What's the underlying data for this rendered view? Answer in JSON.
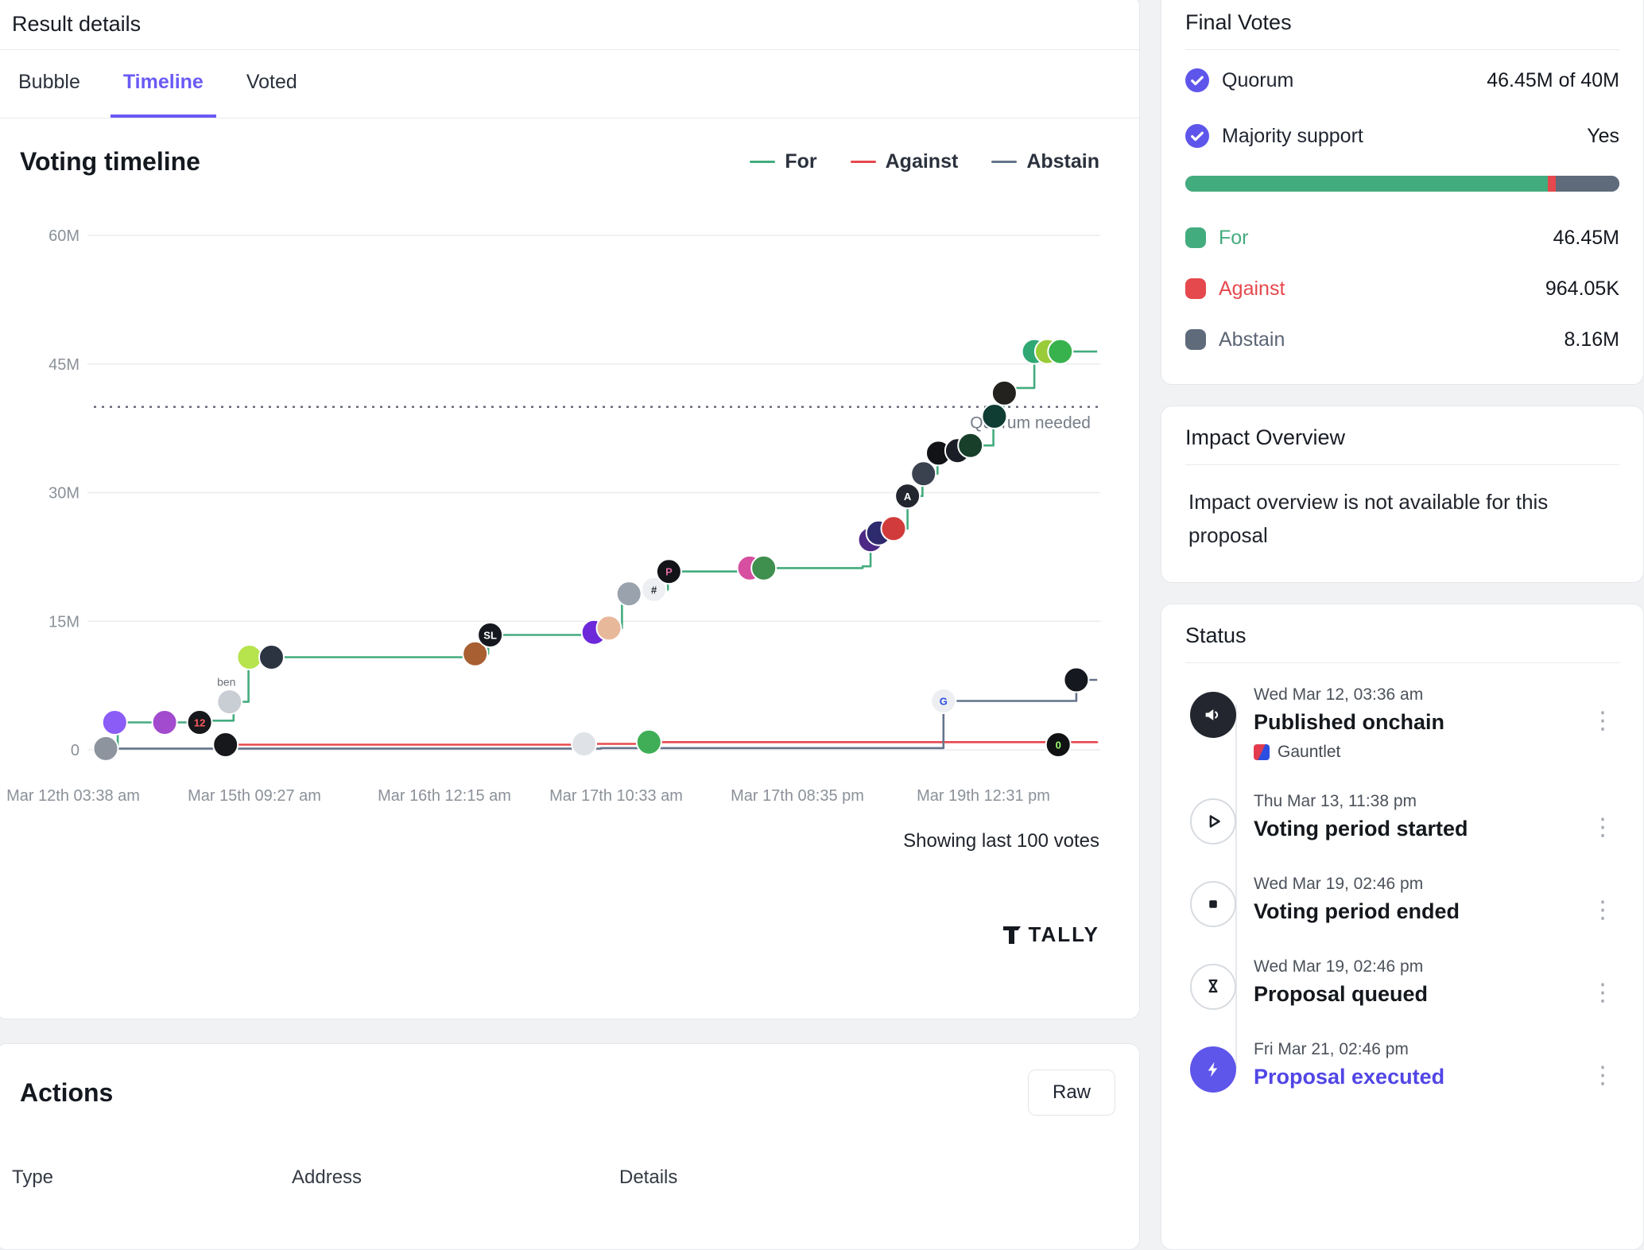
{
  "colors": {
    "accent_purple": "#6a5af5",
    "for_green": "#43ac7e",
    "against_red": "#e5484d",
    "abstain_gray": "#64748b",
    "check_indigo": "#5e55ea",
    "executed_indigo": "#5146e5"
  },
  "result_details": {
    "title": "Result details",
    "tabs": [
      {
        "label": "Bubble",
        "active": false
      },
      {
        "label": "Timeline",
        "active": true
      },
      {
        "label": "Voted",
        "active": false
      }
    ]
  },
  "timeline_card": {
    "title": "Voting timeline",
    "footnote": "Showing last 100 votes",
    "brand": "TALLY"
  },
  "chart_data": {
    "type": "line",
    "title": "Voting timeline",
    "ylim": [
      0,
      60
    ],
    "y_ticks": [
      {
        "v": 60,
        "label": "60M"
      },
      {
        "v": 45,
        "label": "45M"
      },
      {
        "v": 30,
        "label": "30M"
      },
      {
        "v": 15,
        "label": "15M"
      },
      {
        "v": 0,
        "label": "0"
      }
    ],
    "x_ticks": [
      {
        "f": -0.029,
        "label": "Mar 12th 03:38 am"
      },
      {
        "f": 0.153,
        "label": "Mar 15th 09:27 am"
      },
      {
        "f": 0.343,
        "label": "Mar 16th 12:15 am"
      },
      {
        "f": 0.515,
        "label": "Mar 17th 10:33 am"
      },
      {
        "f": 0.697,
        "label": "Mar 17th 08:35 pm"
      },
      {
        "f": 0.883,
        "label": "Mar 19th 12:31 pm"
      }
    ],
    "quorum": {
      "value": 40,
      "label": "Quorum needed"
    },
    "legend_position": "top-right",
    "series": [
      {
        "name": "For",
        "color": "#43ac7e",
        "points": [
          [
            0.005,
            0.4
          ],
          [
            0.016,
            3.2
          ],
          [
            0.1,
            3.4
          ],
          [
            0.132,
            5.6
          ],
          [
            0.147,
            10.8
          ],
          [
            0.372,
            11.2
          ],
          [
            0.387,
            13.4
          ],
          [
            0.492,
            13.7
          ],
          [
            0.506,
            14.2
          ],
          [
            0.521,
            18.2
          ],
          [
            0.553,
            18.7
          ],
          [
            0.567,
            20.8
          ],
          [
            0.649,
            21.2
          ],
          [
            0.762,
            21.4
          ],
          [
            0.77,
            24.5
          ],
          [
            0.777,
            25.3
          ],
          [
            0.791,
            25.8
          ],
          [
            0.807,
            29.6
          ],
          [
            0.822,
            32.2
          ],
          [
            0.837,
            34.6
          ],
          [
            0.856,
            34.9
          ],
          [
            0.869,
            35.5
          ],
          [
            0.893,
            38.9
          ],
          [
            0.903,
            41.6
          ],
          [
            0.912,
            42.2
          ],
          [
            0.934,
            46.45
          ],
          [
            0.997,
            46.45
          ]
        ]
      },
      {
        "name": "Against",
        "color": "#e5484d",
        "points": [
          [
            0.123,
            0.6
          ],
          [
            0.48,
            0.7
          ],
          [
            0.548,
            0.9
          ],
          [
            0.997,
            0.96
          ]
        ]
      },
      {
        "name": "Abstain",
        "color": "#64748b",
        "points": [
          [
            0.003,
            0.15
          ],
          [
            0.5,
            0.2
          ],
          [
            0.843,
            5.7
          ],
          [
            0.976,
            8.16
          ],
          [
            0.997,
            8.16
          ]
        ]
      }
    ],
    "avatars": [
      {
        "x": 0.013,
        "v": 3.2,
        "c": "#8b5cf6"
      },
      {
        "x": 0.063,
        "v": 3.2,
        "c": "#a24bcf"
      },
      {
        "x": 0.098,
        "v": 3.2,
        "c": "#17181c",
        "t": "12",
        "tc": "#ff5a5f"
      },
      {
        "x": 0.128,
        "v": 5.6,
        "c": "#c9cdd4",
        "label": "ben"
      },
      {
        "x": 0.148,
        "v": 10.8,
        "c": "#b7e34d"
      },
      {
        "x": 0.17,
        "v": 10.8,
        "c": "#2b3440"
      },
      {
        "x": 0.374,
        "v": 11.2,
        "c": "#a85f32"
      },
      {
        "x": 0.389,
        "v": 13.4,
        "c": "#15181e",
        "t": "SL",
        "tc": "#ffffff"
      },
      {
        "x": 0.493,
        "v": 13.7,
        "c": "#6d28d9"
      },
      {
        "x": 0.508,
        "v": 14.2,
        "c": "#e8b89b"
      },
      {
        "x": 0.528,
        "v": 18.2,
        "c": "#9aa2ad"
      },
      {
        "x": 0.553,
        "v": 18.7,
        "c": "#edeff2",
        "t": "#",
        "tc": "#23262e"
      },
      {
        "x": 0.568,
        "v": 20.8,
        "c": "#121418",
        "t": "P",
        "tc": "#e06aa2"
      },
      {
        "x": 0.649,
        "v": 21.2,
        "c": "#d64fa0"
      },
      {
        "x": 0.663,
        "v": 21.2,
        "c": "#3f8f4f"
      },
      {
        "x": 0.77,
        "v": 24.5,
        "c": "#4c2a85"
      },
      {
        "x": 0.778,
        "v": 25.3,
        "c": "#2d2a6e"
      },
      {
        "x": 0.793,
        "v": 25.8,
        "c": "#d23b3b"
      },
      {
        "x": 0.807,
        "v": 29.6,
        "c": "#23262e",
        "t": "A",
        "tc": "#ffffff"
      },
      {
        "x": 0.823,
        "v": 32.2,
        "c": "#3a4250"
      },
      {
        "x": 0.838,
        "v": 34.6,
        "c": "#111317"
      },
      {
        "x": 0.857,
        "v": 34.9,
        "c": "#1b1e26"
      },
      {
        "x": 0.87,
        "v": 35.5,
        "c": "#173f2a"
      },
      {
        "x": 0.894,
        "v": 38.9,
        "c": "#0f3d33"
      },
      {
        "x": 0.904,
        "v": 41.6,
        "c": "#23221f"
      },
      {
        "x": 0.934,
        "v": 46.45,
        "c": "#2fa874"
      },
      {
        "x": 0.947,
        "v": 46.45,
        "c": "#9acc3a"
      },
      {
        "x": 0.96,
        "v": 46.45,
        "c": "#37b24d"
      },
      {
        "x": 0.124,
        "v": 0.6,
        "c": "#17181c"
      },
      {
        "x": 0.483,
        "v": 0.7,
        "c": "#dfe2e6"
      },
      {
        "x": 0.548,
        "v": 0.9,
        "c": "#3fae56"
      },
      {
        "x": 0.958,
        "v": 0.6,
        "c": "#101214",
        "t": "0",
        "tc": "#9efc6a"
      },
      {
        "x": 0.004,
        "v": 0.15,
        "c": "#8d949e"
      },
      {
        "x": 0.843,
        "v": 5.7,
        "c": "#eceef1",
        "t": "G",
        "tc": "#2d4ee0"
      },
      {
        "x": 0.976,
        "v": 8.16,
        "c": "#15181e"
      }
    ]
  },
  "actions": {
    "title": "Actions",
    "raw_button": "Raw",
    "columns": [
      "Type",
      "Address",
      "Details"
    ]
  },
  "final_votes": {
    "title": "Final Votes",
    "quorum_label": "Quorum",
    "quorum_value": "46.45M of 40M",
    "majority_label": "Majority support",
    "majority_value": "Yes",
    "bar": {
      "for": 46450000,
      "against": 964050,
      "abstain": 8160000
    },
    "rows": [
      {
        "label": "For",
        "value": "46.45M"
      },
      {
        "label": "Against",
        "value": "964.05K"
      },
      {
        "label": "Abstain",
        "value": "8.16M"
      }
    ]
  },
  "impact": {
    "title": "Impact Overview",
    "body": "Impact overview is not available for this proposal"
  },
  "status": {
    "title": "Status",
    "items": [
      {
        "date": "Wed Mar 12, 03:36 am",
        "title": "Published onchain",
        "by": "Gauntlet"
      },
      {
        "date": "Thu Mar 13, 11:38 pm",
        "title": "Voting period started"
      },
      {
        "date": "Wed Mar 19, 02:46 pm",
        "title": "Voting period ended"
      },
      {
        "date": "Wed Mar 19, 02:46 pm",
        "title": "Proposal queued"
      },
      {
        "date": "Fri Mar 21, 02:46 pm",
        "title": "Proposal executed"
      }
    ]
  }
}
